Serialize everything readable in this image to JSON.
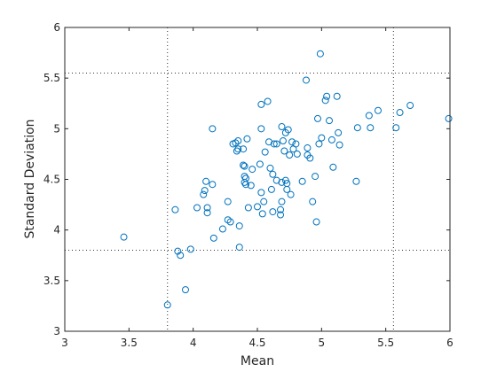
{
  "chart_data": {
    "type": "scatter",
    "xlabel": "Mean",
    "ylabel": "Standard Deviation",
    "xlim": [
      3,
      6
    ],
    "ylim": [
      3,
      6
    ],
    "xticks": [
      "3",
      "3.5",
      "4",
      "4.5",
      "5",
      "5.5",
      "6"
    ],
    "yticks": [
      "3",
      "3.5",
      "4",
      "4.5",
      "5",
      "5.5",
      "6"
    ],
    "grid": false,
    "marker": "circle-open",
    "marker_color": "#0072bd",
    "reference_lines": {
      "x": [
        3.8,
        5.56
      ],
      "y": [
        3.8,
        5.55
      ]
    },
    "points": [
      [
        3.46,
        3.93
      ],
      [
        3.8,
        3.26
      ],
      [
        3.86,
        4.2
      ],
      [
        3.88,
        3.79
      ],
      [
        3.9,
        3.75
      ],
      [
        3.94,
        3.41
      ],
      [
        3.98,
        3.81
      ],
      [
        4.03,
        4.22
      ],
      [
        4.08,
        4.35
      ],
      [
        4.09,
        4.39
      ],
      [
        4.1,
        4.48
      ],
      [
        4.11,
        4.17
      ],
      [
        4.11,
        4.22
      ],
      [
        4.15,
        4.45
      ],
      [
        4.15,
        5.0
      ],
      [
        4.16,
        3.92
      ],
      [
        4.23,
        4.01
      ],
      [
        4.27,
        4.28
      ],
      [
        4.27,
        4.1
      ],
      [
        4.29,
        4.08
      ],
      [
        4.31,
        4.85
      ],
      [
        4.33,
        4.86
      ],
      [
        4.34,
        4.78
      ],
      [
        4.35,
        4.88
      ],
      [
        4.35,
        4.8
      ],
      [
        4.36,
        3.83
      ],
      [
        4.36,
        4.04
      ],
      [
        4.39,
        4.8
      ],
      [
        4.39,
        4.64
      ],
      [
        4.4,
        4.63
      ],
      [
        4.4,
        4.53
      ],
      [
        4.4,
        4.47
      ],
      [
        4.41,
        4.51
      ],
      [
        4.41,
        4.45
      ],
      [
        4.42,
        4.9
      ],
      [
        4.43,
        4.22
      ],
      [
        4.45,
        4.44
      ],
      [
        4.46,
        4.6
      ],
      [
        4.5,
        4.23
      ],
      [
        4.52,
        4.65
      ],
      [
        4.53,
        5.24
      ],
      [
        4.53,
        5.0
      ],
      [
        4.53,
        4.37
      ],
      [
        4.54,
        4.16
      ],
      [
        4.55,
        4.28
      ],
      [
        4.56,
        4.77
      ],
      [
        4.58,
        5.27
      ],
      [
        4.59,
        4.87
      ],
      [
        4.6,
        4.61
      ],
      [
        4.61,
        4.4
      ],
      [
        4.62,
        4.18
      ],
      [
        4.62,
        4.55
      ],
      [
        4.63,
        4.85
      ],
      [
        4.65,
        4.85
      ],
      [
        4.65,
        4.49
      ],
      [
        4.68,
        4.15
      ],
      [
        4.68,
        4.2
      ],
      [
        4.69,
        4.28
      ],
      [
        4.69,
        5.02
      ],
      [
        4.69,
        4.47
      ],
      [
        4.7,
        4.88
      ],
      [
        4.71,
        4.78
      ],
      [
        4.72,
        4.49
      ],
      [
        4.72,
        4.96
      ],
      [
        4.73,
        4.4
      ],
      [
        4.73,
        4.46
      ],
      [
        4.74,
        4.99
      ],
      [
        4.75,
        4.74
      ],
      [
        4.76,
        4.35
      ],
      [
        4.77,
        4.87
      ],
      [
        4.78,
        4.8
      ],
      [
        4.8,
        4.85
      ],
      [
        4.81,
        4.75
      ],
      [
        4.85,
        4.48
      ],
      [
        4.88,
        5.48
      ],
      [
        4.89,
        4.81
      ],
      [
        4.89,
        4.74
      ],
      [
        4.91,
        4.71
      ],
      [
        4.93,
        4.28
      ],
      [
        4.95,
        4.53
      ],
      [
        4.96,
        4.08
      ],
      [
        4.97,
        5.1
      ],
      [
        4.98,
        4.85
      ],
      [
        4.99,
        5.74
      ],
      [
        5.0,
        4.91
      ],
      [
        5.03,
        5.28
      ],
      [
        5.04,
        5.32
      ],
      [
        5.06,
        5.08
      ],
      [
        5.08,
        4.89
      ],
      [
        5.09,
        4.62
      ],
      [
        5.12,
        5.32
      ],
      [
        5.13,
        4.96
      ],
      [
        5.14,
        4.84
      ],
      [
        5.27,
        4.48
      ],
      [
        5.28,
        5.01
      ],
      [
        5.37,
        5.13
      ],
      [
        5.38,
        5.01
      ],
      [
        5.44,
        5.18
      ],
      [
        5.58,
        5.01
      ],
      [
        5.61,
        5.16
      ],
      [
        5.69,
        5.23
      ],
      [
        5.99,
        5.1
      ]
    ]
  }
}
